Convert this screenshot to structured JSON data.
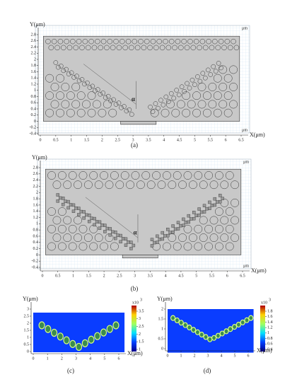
{
  "panels": [
    {
      "caption": "(a)",
      "y_label": "Y(μm)",
      "x_label": "X(μm)",
      "unit": "μm",
      "angle_label": "α",
      "xticks": [
        0,
        0.5,
        1,
        1.5,
        2,
        2.5,
        3,
        3.5,
        4,
        4.5,
        5,
        5.5,
        6,
        6.5
      ],
      "yticks": [
        -0.4,
        -0.2,
        0,
        0.2,
        0.4,
        0.6,
        0.8,
        1,
        1.2,
        1.4,
        1.6,
        1.8,
        2,
        2.2,
        2.4,
        2.6,
        2.8
      ]
    },
    {
      "caption": "(b)",
      "y_label": "Y(μm)",
      "x_label": "X(μm)",
      "unit": "μm",
      "angle_label": "α",
      "xticks": [
        0,
        0.5,
        1,
        1.5,
        2,
        2.5,
        3,
        3.5,
        4,
        4.5,
        5,
        5.5,
        6,
        6.5
      ],
      "yticks": [
        -0.4,
        -0.2,
        0,
        0.2,
        0.4,
        0.6,
        0.8,
        1,
        1.2,
        1.4,
        1.6,
        1.8,
        2,
        2.2,
        2.4,
        2.6,
        2.8
      ]
    },
    {
      "caption": "(c)",
      "y_label": "Y(μm)",
      "x_label": "X(μm)",
      "xticks": [
        0,
        1,
        2,
        3,
        4,
        5,
        6
      ],
      "yticks": [
        0,
        0.5,
        1,
        1.5,
        2,
        2.5,
        3
      ],
      "colorbar": {
        "multiplier": "x10",
        "exponent": "3",
        "ticks": [
          1,
          1.5,
          2,
          2.5,
          3,
          3.5
        ]
      }
    },
    {
      "caption": "(d)",
      "y_label": "Y(μm)",
      "x_label": "X(μm)",
      "xticks": [
        0,
        1,
        2,
        3,
        4,
        5,
        6
      ],
      "yticks": [
        0,
        0.5,
        1,
        1.5,
        2
      ],
      "colorbar": {
        "multiplier": "x10",
        "exponent": "3",
        "ticks": [
          0.4,
          0.6,
          0.8,
          1,
          1.2,
          1.4,
          1.6,
          1.8
        ]
      }
    }
  ]
}
